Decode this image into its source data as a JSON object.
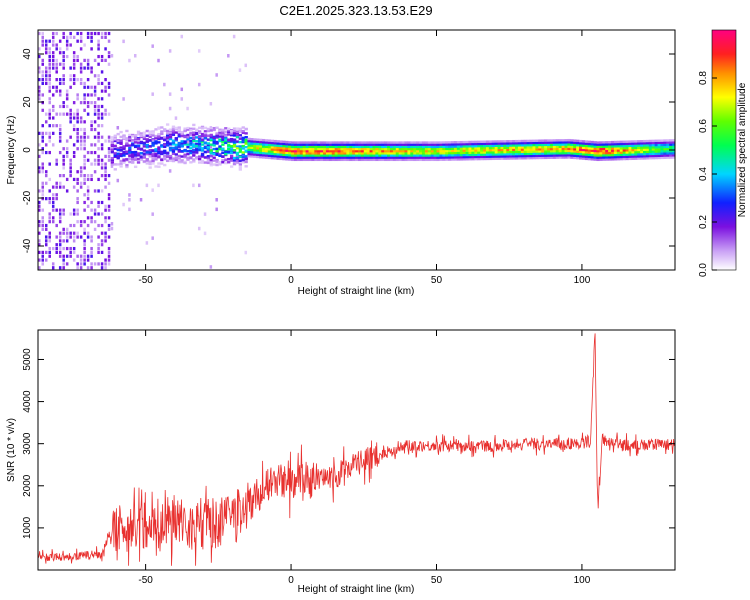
{
  "figure_title": "C2E1.2025.323.13.53.E29",
  "chart_data": [
    {
      "type": "heatmap",
      "title": "C2E1.2025.323.13.53.E29",
      "xlabel": "Height of straight line (km)",
      "ylabel": "Frequency (Hz)",
      "xlim": [
        -87,
        132
      ],
      "ylim": [
        -50,
        50
      ],
      "xticks": [
        -50,
        0,
        50,
        100
      ],
      "yticks": [
        -40,
        -20,
        0,
        20,
        40
      ],
      "colorbar": {
        "label": "Normalized spectral amplitude",
        "range": [
          0,
          1
        ],
        "ticks": [
          0.0,
          0.2,
          0.4,
          0.6,
          0.8
        ]
      },
      "ridge": {
        "description_points": [
          {
            "x": -62,
            "freq": 0,
            "amp": 0.25
          },
          {
            "x": -40,
            "freq": 3,
            "amp": 0.35
          },
          {
            "x": -20,
            "freq": 2,
            "amp": 0.55
          },
          {
            "x": 0,
            "freq": 0,
            "amp": 0.9
          },
          {
            "x": 50,
            "freq": 0,
            "amp": 0.7
          },
          {
            "x": 95,
            "freq": 1,
            "amp": 0.8
          },
          {
            "x": 105,
            "freq": 0,
            "amp": 0.95
          },
          {
            "x": 132,
            "freq": 1,
            "amp": 0.5
          }
        ]
      }
    },
    {
      "type": "line",
      "xlabel": "Height of straight line (km)",
      "ylabel": "SNR (10 * v/v)",
      "xlim": [
        -87,
        132
      ],
      "ylim": [
        0,
        5700
      ],
      "xticks": [
        -50,
        0,
        50,
        100
      ],
      "yticks": [
        1000,
        2000,
        3000,
        4000,
        5000
      ],
      "color": "#e8302e",
      "series": [
        {
          "name": "SNR",
          "x": [
            -87,
            -75,
            -65,
            -62,
            -55,
            -50,
            -45,
            -40,
            -35,
            -30,
            -25,
            -20,
            -15,
            -10,
            -5,
            0,
            5,
            10,
            15,
            20,
            25,
            30,
            35,
            40,
            50,
            60,
            70,
            80,
            90,
            100,
            103,
            104.5,
            105.5,
            107,
            110,
            120,
            132
          ],
          "y": [
            300,
            320,
            380,
            900,
            1000,
            1100,
            1000,
            1300,
            1050,
            1150,
            1100,
            1300,
            1500,
            1900,
            2100,
            2050,
            2200,
            2100,
            2200,
            2500,
            2600,
            2700,
            2850,
            2950,
            2950,
            2950,
            2950,
            3000,
            3000,
            3000,
            3100,
            5600,
            1300,
            3100,
            3000,
            2950,
            3000
          ]
        }
      ]
    }
  ]
}
